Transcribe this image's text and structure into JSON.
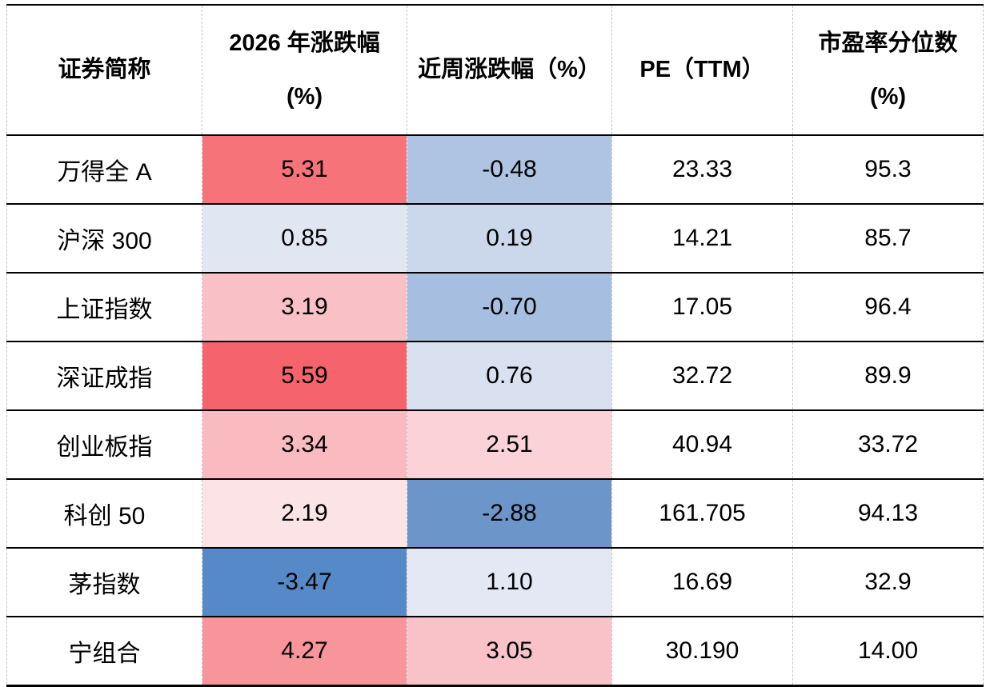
{
  "chart_data": {
    "type": "table",
    "title": "",
    "legend": "conditional red-white-blue color scale on change columns (red = high, blue = low)",
    "scale_colors": {
      "high_red": "#F5646C",
      "mid_white": "#FFFFFF",
      "low_blue": "#5589C7"
    },
    "columns": [
      {
        "id": "name",
        "line1": "证券简称",
        "line2": ""
      },
      {
        "id": "chg2026",
        "line1": "2026 年涨跌幅",
        "line2": "(%)"
      },
      {
        "id": "chgweek",
        "line1": "近周涨跌幅（%）",
        "line2": ""
      },
      {
        "id": "pe",
        "line1": "PE（TTM）",
        "line2": ""
      },
      {
        "id": "pepct",
        "line1": "市盈率分位数",
        "line2": "(%)"
      }
    ],
    "rows": [
      {
        "name": "万得全 A",
        "chg2026": "5.31",
        "chg2026_bg": "#F7737A",
        "chgweek": "-0.48",
        "chgweek_bg": "#AEC4E2",
        "pe": "23.33",
        "pepct": "95.3"
      },
      {
        "name": "沪深 300",
        "chg2026": "0.85",
        "chg2026_bg": "#E0E6F2",
        "chgweek": "0.19",
        "chgweek_bg": "#CBD8EC",
        "pe": "14.21",
        "pepct": "85.7"
      },
      {
        "name": "上证指数",
        "chg2026": "3.19",
        "chg2026_bg": "#F9C0C5",
        "chgweek": "-0.70",
        "chgweek_bg": "#A6BEDF",
        "pe": "17.05",
        "pepct": "96.4"
      },
      {
        "name": "深证成指",
        "chg2026": "5.59",
        "chg2026_bg": "#F5646C",
        "chgweek": "0.76",
        "chgweek_bg": "#D9E0F0",
        "pe": "32.72",
        "pepct": "89.9"
      },
      {
        "name": "创业板指",
        "chg2026": "3.34",
        "chg2026_bg": "#F9BAC0",
        "chgweek": "2.51",
        "chgweek_bg": "#FAD2D7",
        "pe": "40.94",
        "pepct": "33.72"
      },
      {
        "name": "科创 50",
        "chg2026": "2.19",
        "chg2026_bg": "#FCE3E5",
        "chgweek": "-2.88",
        "chgweek_bg": "#6C95CA",
        "pe": "161.705",
        "pepct": "94.13"
      },
      {
        "name": "茅指数",
        "chg2026": "-3.47",
        "chg2026_bg": "#5589C7",
        "chgweek": "1.10",
        "chgweek_bg": "#E3E8F4",
        "pe": "16.69",
        "pepct": "32.9"
      },
      {
        "name": "宁组合",
        "chg2026": "4.27",
        "chg2026_bg": "#F8959B",
        "chgweek": "3.05",
        "chgweek_bg": "#F9C2C8",
        "pe": "30.190",
        "pepct": "14.00"
      }
    ]
  }
}
